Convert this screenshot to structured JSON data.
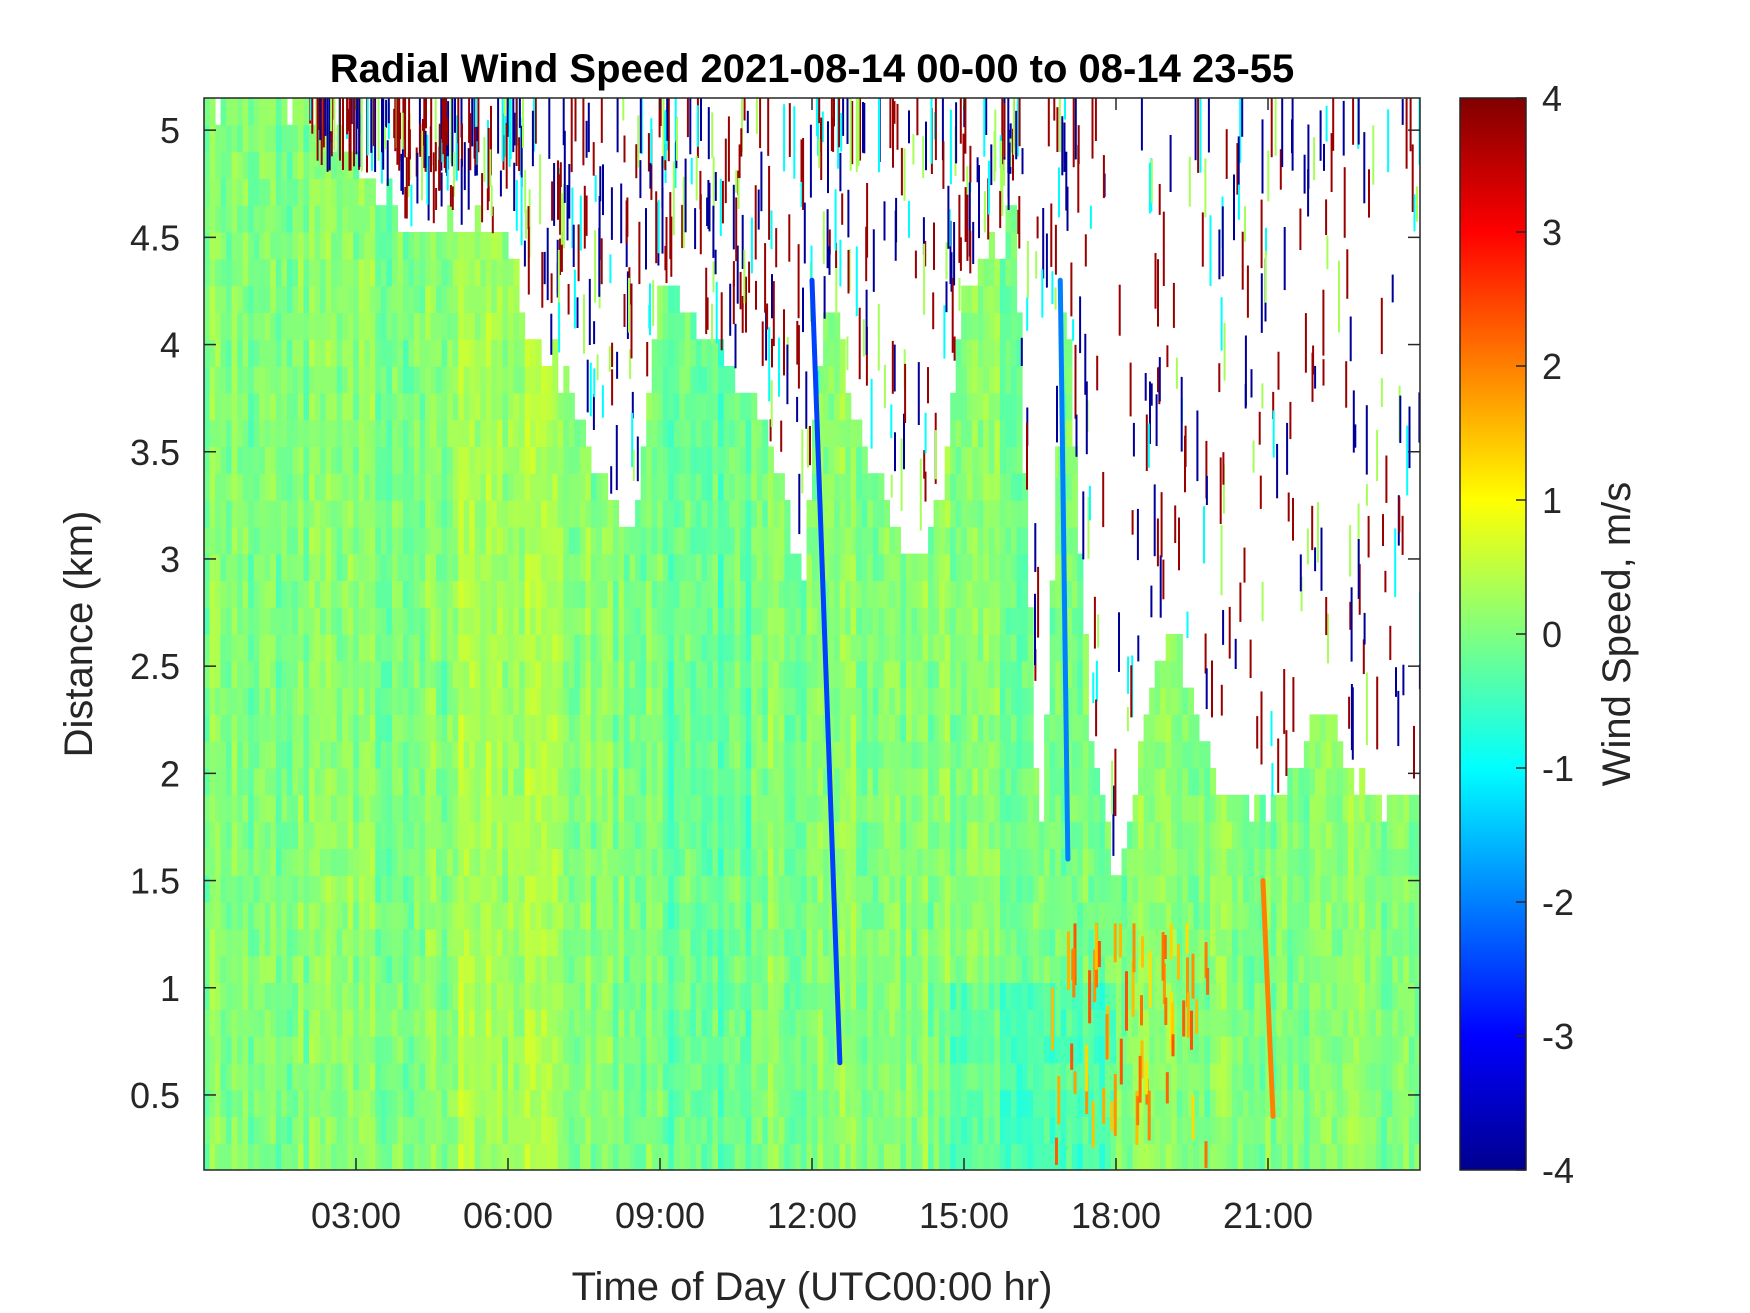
{
  "chart_data": {
    "type": "heatmap",
    "title": "Radial Wind Speed 2021-08-14 00-00 to 08-14 23-55",
    "xlabel": "Time of Day (UTC00:00 hr)",
    "ylabel": "Distance (km)",
    "xlim": [
      0,
      24
    ],
    "ylim": [
      0.15,
      5.15
    ],
    "x_ticks": [
      3,
      6,
      9,
      12,
      15,
      18,
      21
    ],
    "x_tick_labels": [
      "03:00",
      "06:00",
      "09:00",
      "12:00",
      "15:00",
      "18:00",
      "21:00"
    ],
    "y_ticks": [
      0.5,
      1,
      1.5,
      2,
      2.5,
      3,
      3.5,
      4,
      4.5,
      5
    ],
    "y_tick_labels": [
      "0.5",
      "1",
      "1.5",
      "2",
      "2.5",
      "3",
      "3.5",
      "4",
      "4.5",
      "5"
    ],
    "colorbar": {
      "label": "Wind Speed, m/s",
      "range": [
        -4,
        4
      ],
      "colormap": "jet",
      "ticks": [
        4,
        3,
        2,
        1,
        0,
        -1,
        -2,
        -3,
        -4
      ],
      "tick_labels": [
        "4",
        "3",
        "2",
        "1",
        "0",
        "-1",
        "-2",
        "-3",
        "-4"
      ]
    },
    "data_coverage_top_km": [
      {
        "t": 0,
        "z": 5.15
      },
      {
        "t": 1,
        "z": 5.15
      },
      {
        "t": 2,
        "z": 5.1
      },
      {
        "t": 3,
        "z": 4.9
      },
      {
        "t": 4,
        "z": 4.55
      },
      {
        "t": 5,
        "z": 4.55
      },
      {
        "t": 6,
        "z": 4.5
      },
      {
        "t": 6.5,
        "z": 4.0
      },
      {
        "t": 7,
        "z": 3.9
      },
      {
        "t": 7.5,
        "z": 3.6
      },
      {
        "t": 8,
        "z": 3.3
      },
      {
        "t": 8.5,
        "z": 3.1
      },
      {
        "t": 9,
        "z": 4.3
      },
      {
        "t": 10,
        "z": 4.0
      },
      {
        "t": 11,
        "z": 3.7
      },
      {
        "t": 11.8,
        "z": 2.9
      },
      {
        "t": 12.3,
        "z": 4.3
      },
      {
        "t": 13,
        "z": 3.5
      },
      {
        "t": 14,
        "z": 3.0
      },
      {
        "t": 14.5,
        "z": 3.2
      },
      {
        "t": 15,
        "z": 4.3
      },
      {
        "t": 16,
        "z": 4.6
      },
      {
        "t": 16.5,
        "z": 1.6
      },
      {
        "t": 17,
        "z": 4.3
      },
      {
        "t": 17.5,
        "z": 2.2
      },
      {
        "t": 18,
        "z": 1.5
      },
      {
        "t": 19,
        "z": 2.7
      },
      {
        "t": 20,
        "z": 2.0
      },
      {
        "t": 21,
        "z": 1.8
      },
      {
        "t": 22,
        "z": 2.3
      },
      {
        "t": 23,
        "z": 1.9
      },
      {
        "t": 24,
        "z": 1.9
      }
    ],
    "features": [
      {
        "description": "descending negative wind streak",
        "t_start": 12.0,
        "z_start": 4.3,
        "t_end": 12.55,
        "z_end": 0.65,
        "value": -2.5
      },
      {
        "description": "negative streak",
        "t_start": 16.9,
        "z_start": 4.3,
        "t_end": 17.05,
        "z_end": 1.6,
        "value": -2.0
      },
      {
        "description": "positive wind cells near ground",
        "t_range": [
          16.6,
          19.8
        ],
        "z_range": [
          0.15,
          1.3
        ],
        "value": 2.0
      },
      {
        "description": "positive streak",
        "t_start": 20.9,
        "z_start": 1.5,
        "t_end": 21.1,
        "z_end": 0.4,
        "value": 2.0
      }
    ]
  }
}
